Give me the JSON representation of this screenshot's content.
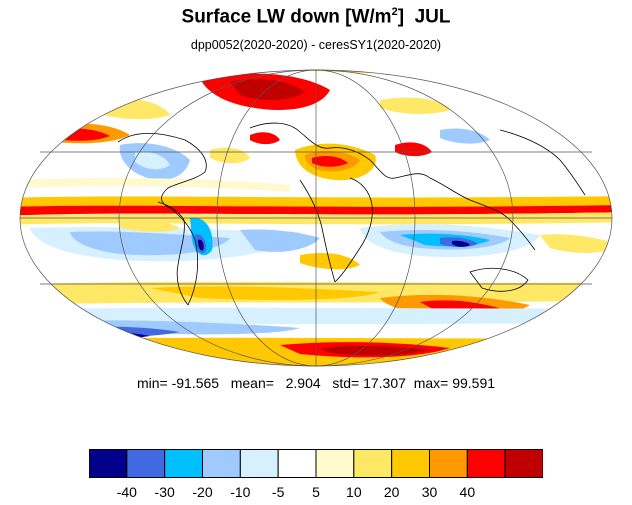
{
  "title": {
    "main": "Surface LW down [W/m",
    "superscript": "2",
    "suffix": "]  JUL"
  },
  "subtitle": "dpp0052(2020-2020) - ceresSY1(2020-2020)",
  "stats": {
    "min_label": "min=",
    "min": "-91.565",
    "mean_label": "mean=",
    "mean": "2.904",
    "std_label": "std=",
    "std": "17.307",
    "max_label": "max=",
    "max": "99.591"
  },
  "colorbar": {
    "colors": [
      "#00008b",
      "#4169e1",
      "#00bfff",
      "#9fcaff",
      "#d6f0ff",
      "#ffffff",
      "#fffacd",
      "#ffe866",
      "#ffc800",
      "#ff9900",
      "#ff0000",
      "#c00000"
    ],
    "labels": [
      "-40",
      "-30",
      "-20",
      "-10",
      "-5",
      "5",
      "10",
      "20",
      "30",
      "40"
    ]
  },
  "map": {
    "projection": "mollweide",
    "grid": true,
    "coastlines": true
  }
}
